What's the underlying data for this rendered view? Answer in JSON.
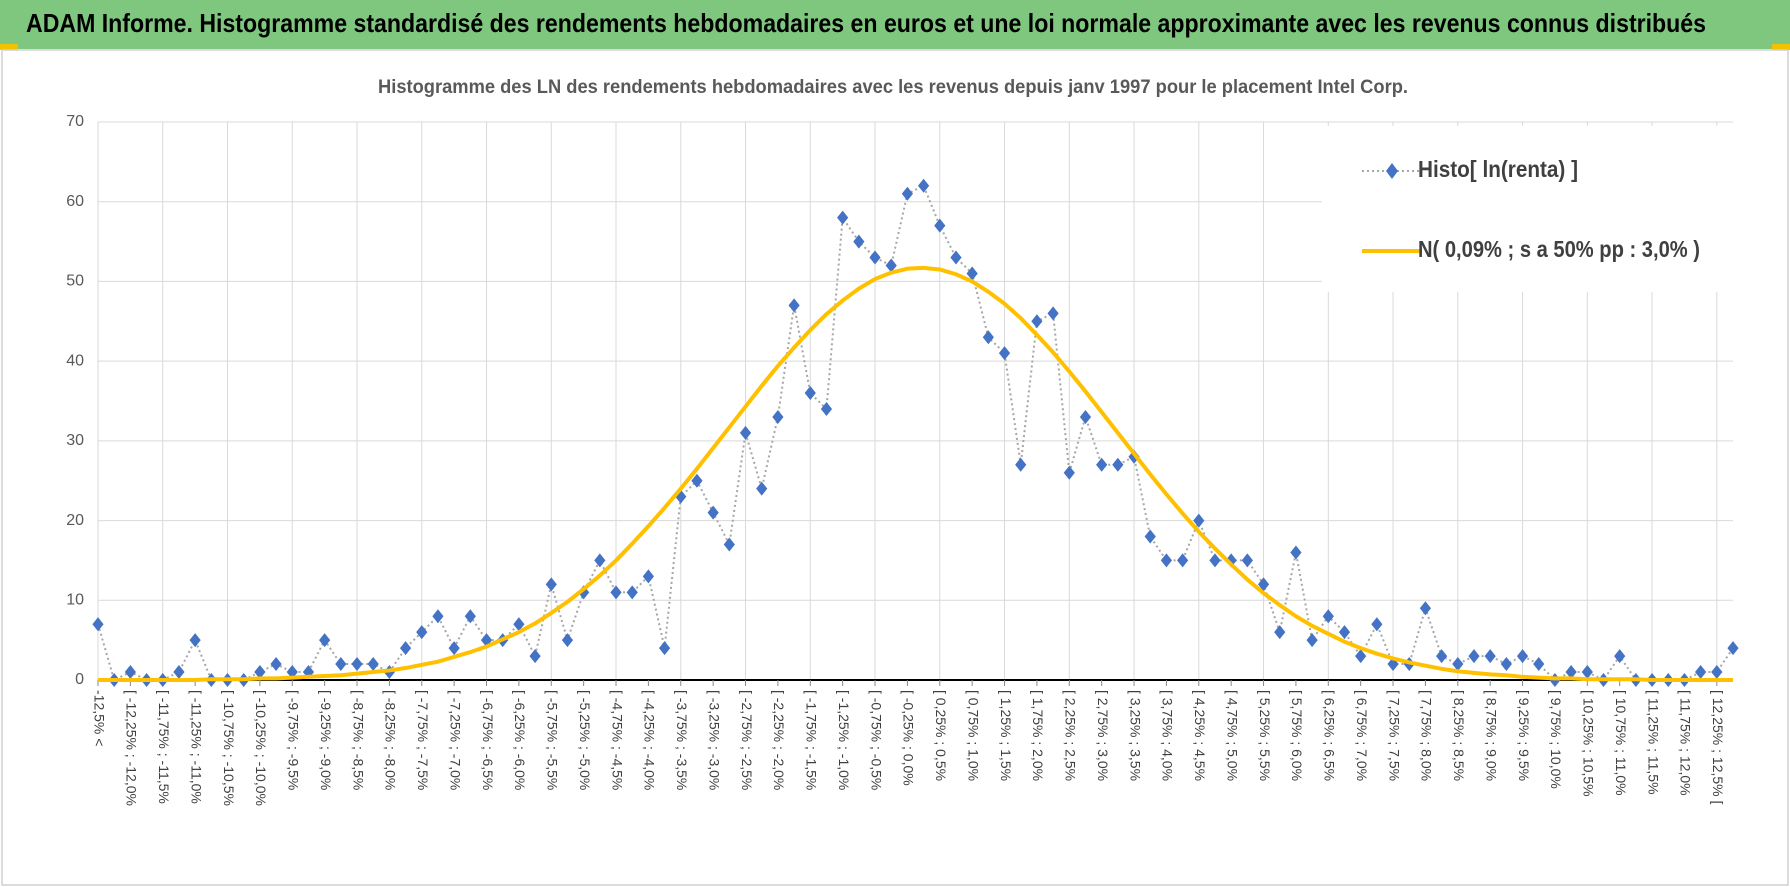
{
  "chart_data": {
    "type": "line",
    "title": "ADAM Informe. Histogramme standardisé des rendements hebdomadaires en euros et une loi normale approximante avec les revenus connus distribués",
    "subtitle": "Histogramme  des LN des rendements hebdomadaires avec les revenus depuis janv 1997 pour le placement Intel Corp.",
    "categories": [
      "-12,5% <",
      null,
      "[ -12,25% ; -12,0%",
      null,
      "[ -11,75% ; -11,5%",
      null,
      "[ -11,25% ; -11,0%",
      null,
      "[ -10,75% ; -10,5%",
      null,
      "[ -10,25% ; -10,0%",
      null,
      "[ -9,75% ; -9,5%",
      null,
      "[ -9,25% ; -9,0%",
      null,
      "[ -8,75% ; -8,5%",
      null,
      "[ -8,25% ; -8,0%",
      null,
      "[ -7,75% ; -7,5%",
      null,
      "[ -7,25% ; -7,0%",
      null,
      "[ -6,75% ; -6,5%",
      null,
      "[ -6,25% ; -6,0%",
      null,
      "[ -5,75% ; -5,5%",
      null,
      "[ -5,25% ; -5,0%",
      null,
      "[ -4,75% ; -4,5%",
      null,
      "[ -4,25% ; -4,0%",
      null,
      "[ -3,75% ; -3,5%",
      null,
      "[ -3,25% ; -3,0%",
      null,
      "[ -2,75% ; -2,5%",
      null,
      "[ -2,25% ; -2,0%",
      null,
      "[ -1,75% ; -1,5%",
      null,
      "[ -1,25% ; -1,0%",
      null,
      "[ -0,75% ; -0,5%",
      null,
      "[ -0,25% ; 0,0%",
      null,
      "[ 0,25% ; 0,5%",
      null,
      "[ 0,75% ; 1,0%",
      null,
      "[ 1,25% ; 1,5%",
      null,
      "[ 1,75% ; 2,0%",
      null,
      "[ 2,25% ; 2,5%",
      null,
      "[ 2,75% ; 3,0%",
      null,
      "[ 3,25% ; 3,5%",
      null,
      "[ 3,75% ; 4,0%",
      null,
      "[ 4,25% ; 4,5%",
      null,
      "[ 4,75% ; 5,0%",
      null,
      "[ 5,25% ; 5,5%",
      null,
      "[ 5,75% ; 6,0%",
      null,
      "[ 6,25% ; 6,5%",
      null,
      "[ 6,75% ; 7,0%",
      null,
      "[ 7,25% ; 7,5%",
      null,
      "[ 7,75% ; 8,0%",
      null,
      "[ 8,25% ; 8,5%",
      null,
      "[ 8,75% ; 9,0%",
      null,
      "[ 9,25% ; 9,5%",
      null,
      "[ 9,75% ; 10,0%",
      null,
      "[ 10,25% ; 10,5%",
      null,
      "[ 10,75% ; 11,0%",
      null,
      "[ 11,25% ; 11,5%",
      null,
      "[ 11,75% ; 12,0%",
      null,
      "[ 12,25% ; 12,5% [",
      null
    ],
    "series": [
      {
        "name": "Histo[ ln(renta) ]",
        "color": "#4472c4",
        "line_color": "#a6a6a6",
        "marker": "diamond",
        "dash": "dotted",
        "values": [
          7,
          0,
          1,
          0,
          0,
          1,
          5,
          0,
          0,
          0,
          1,
          2,
          1,
          1,
          5,
          2,
          2,
          2,
          1,
          4,
          6,
          8,
          4,
          8,
          5,
          5,
          7,
          3,
          12,
          5,
          11,
          15,
          11,
          11,
          13,
          4,
          23,
          25,
          21,
          17,
          31,
          24,
          33,
          47,
          36,
          34,
          58,
          55,
          53,
          52,
          61,
          62,
          57,
          53,
          51,
          43,
          41,
          27,
          45,
          46,
          26,
          33,
          27,
          27,
          28,
          18,
          15,
          15,
          20,
          15,
          15,
          15,
          12,
          6,
          16,
          5,
          8,
          6,
          3,
          7,
          2,
          2,
          9,
          3,
          2,
          3,
          3,
          2,
          3,
          2,
          0,
          1,
          1,
          0,
          3,
          0,
          0,
          0,
          0,
          1,
          1,
          4
        ]
      },
      {
        "name": "N( 0,09% ; s a 50% pp : 3,0% )",
        "color": "#ffc000",
        "line_color": "#ffc000",
        "dash": "solid",
        "values": [
          0,
          0,
          0,
          0,
          0,
          0,
          0,
          0.1,
          0.1,
          0.1,
          0.2,
          0.2,
          0.3,
          0.4,
          0.5,
          0.6,
          0.8,
          1.0,
          1.2,
          1.5,
          1.9,
          2.3,
          2.9,
          3.5,
          4.2,
          5.1,
          6.0,
          7.1,
          8.4,
          9.8,
          11.4,
          13.1,
          15.0,
          17.1,
          19.3,
          21.6,
          24.0,
          26.5,
          29.1,
          31.7,
          34.3,
          36.9,
          39.4,
          41.7,
          43.9,
          45.9,
          47.6,
          49.1,
          50.3,
          51.1,
          51.6,
          51.7,
          51.5,
          50.9,
          50.0,
          48.7,
          47.2,
          45.4,
          43.3,
          41.1,
          38.7,
          36.2,
          33.6,
          31.0,
          28.4,
          25.8,
          23.3,
          20.9,
          18.6,
          16.5,
          14.5,
          12.6,
          10.9,
          9.4,
          8.0,
          6.8,
          5.8,
          4.8,
          4.0,
          3.3,
          2.7,
          2.2,
          1.8,
          1.4,
          1.1,
          0.9,
          0.7,
          0.6,
          0.4,
          0.3,
          0.2,
          0.2,
          0.1,
          0.1,
          0.1,
          0.1,
          0,
          0,
          0,
          0,
          0,
          0
        ]
      }
    ],
    "ylim": [
      0,
      70
    ],
    "yticks": [
      0,
      10,
      20,
      30,
      40,
      50,
      60,
      70
    ],
    "grid": true,
    "legend": "top-right"
  }
}
